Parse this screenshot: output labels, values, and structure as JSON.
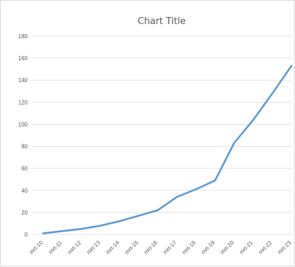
{
  "chart_data": {
    "type": "line",
    "title": "Chart Title",
    "xlabel": "",
    "ylabel": "",
    "ylim": [
      0,
      180
    ],
    "yticks": [
      0,
      20,
      40,
      60,
      80,
      100,
      120,
      140,
      160,
      180
    ],
    "grid": true,
    "legend": "none",
    "categories": [
      "mrt-10",
      "mrt-11",
      "mrt-12",
      "mrt-13",
      "mrt-14",
      "mrt-15",
      "mrt-16",
      "mrt-17",
      "mrt-18",
      "mrt-19",
      "mrt-20",
      "mrt-21",
      "mrt-22",
      "mrt-23"
    ],
    "series": [
      {
        "color": "#5b9bd5",
        "values": [
          1,
          3,
          5,
          8,
          12,
          17,
          22,
          34,
          41,
          49,
          83,
          104,
          128,
          153
        ]
      }
    ]
  }
}
